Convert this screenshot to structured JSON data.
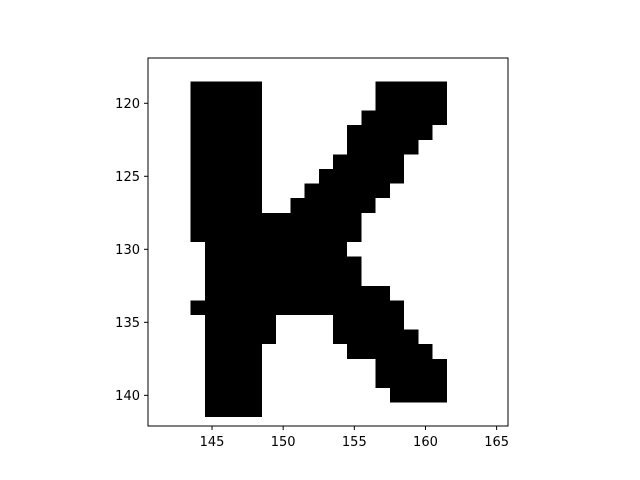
{
  "chart_data": {
    "type": "heatmap",
    "title": "",
    "xlabel": "",
    "ylabel": "",
    "xlim": [
      140.5,
      165.8
    ],
    "ylim": [
      142.1,
      116.9
    ],
    "x_ticks": [
      145,
      150,
      155,
      160,
      165
    ],
    "y_ticks": [
      120,
      125,
      130,
      135,
      140
    ],
    "x_tick_labels": [
      "145",
      "150",
      "155",
      "160",
      "165"
    ],
    "y_tick_labels": [
      "120",
      "125",
      "130",
      "135",
      "140"
    ],
    "grid": false,
    "legend": "none",
    "colormap": {
      "0": "#ffffff",
      "1": "#000000"
    },
    "filled_pixel_runs": [
      {
        "row": 119,
        "x_start": 144,
        "x_end": 148
      },
      {
        "row": 119,
        "x_start": 157,
        "x_end": 161
      },
      {
        "row": 120,
        "x_start": 144,
        "x_end": 148
      },
      {
        "row": 120,
        "x_start": 157,
        "x_end": 161
      },
      {
        "row": 121,
        "x_start": 144,
        "x_end": 148
      },
      {
        "row": 121,
        "x_start": 156,
        "x_end": 161
      },
      {
        "row": 122,
        "x_start": 144,
        "x_end": 148
      },
      {
        "row": 122,
        "x_start": 155,
        "x_end": 160
      },
      {
        "row": 123,
        "x_start": 144,
        "x_end": 148
      },
      {
        "row": 123,
        "x_start": 155,
        "x_end": 159
      },
      {
        "row": 124,
        "x_start": 144,
        "x_end": 148
      },
      {
        "row": 124,
        "x_start": 154,
        "x_end": 158
      },
      {
        "row": 125,
        "x_start": 144,
        "x_end": 148
      },
      {
        "row": 125,
        "x_start": 153,
        "x_end": 158
      },
      {
        "row": 126,
        "x_start": 144,
        "x_end": 148
      },
      {
        "row": 126,
        "x_start": 152,
        "x_end": 157
      },
      {
        "row": 127,
        "x_start": 144,
        "x_end": 148
      },
      {
        "row": 127,
        "x_start": 151,
        "x_end": 156
      },
      {
        "row": 128,
        "x_start": 144,
        "x_end": 155
      },
      {
        "row": 129,
        "x_start": 144,
        "x_end": 155
      },
      {
        "row": 130,
        "x_start": 145,
        "x_end": 154
      },
      {
        "row": 131,
        "x_start": 145,
        "x_end": 155
      },
      {
        "row": 132,
        "x_start": 145,
        "x_end": 155
      },
      {
        "row": 133,
        "x_start": 145,
        "x_end": 157
      },
      {
        "row": 134,
        "x_start": 144,
        "x_end": 158
      },
      {
        "row": 135,
        "x_start": 145,
        "x_end": 149
      },
      {
        "row": 135,
        "x_start": 154,
        "x_end": 158
      },
      {
        "row": 136,
        "x_start": 145,
        "x_end": 149
      },
      {
        "row": 136,
        "x_start": 154,
        "x_end": 159
      },
      {
        "row": 137,
        "x_start": 145,
        "x_end": 148
      },
      {
        "row": 137,
        "x_start": 155,
        "x_end": 160
      },
      {
        "row": 138,
        "x_start": 145,
        "x_end": 148
      },
      {
        "row": 138,
        "x_start": 157,
        "x_end": 161
      },
      {
        "row": 139,
        "x_start": 145,
        "x_end": 148
      },
      {
        "row": 139,
        "x_start": 157,
        "x_end": 161
      },
      {
        "row": 140,
        "x_start": 145,
        "x_end": 148
      },
      {
        "row": 140,
        "x_start": 158,
        "x_end": 161
      },
      {
        "row": 141,
        "x_start": 145,
        "x_end": 148
      }
    ]
  }
}
